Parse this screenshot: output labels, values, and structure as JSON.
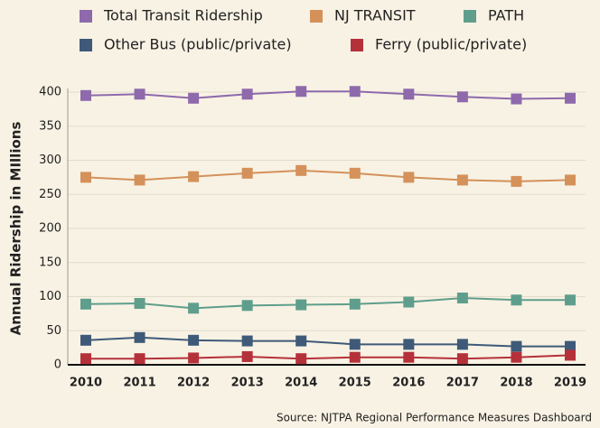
{
  "chart_data": {
    "type": "line",
    "y_label": "Annual Ridership in MIllions",
    "source": "Source: NJTPA Regional Performance Measures Dashboard",
    "categories": [
      "2010",
      "2011",
      "2012",
      "2013",
      "2014",
      "2015",
      "2016",
      "2017",
      "2018",
      "2019"
    ],
    "series": [
      {
        "name": "Total Transit Ridership",
        "color": "#8e6aac",
        "values": [
          395,
          397,
          391,
          397,
          401,
          401,
          397,
          393,
          390,
          391
        ]
      },
      {
        "name": "NJ TRANSIT",
        "color": "#d4915a",
        "values": [
          275,
          271,
          276,
          281,
          285,
          281,
          275,
          271,
          269,
          271
        ]
      },
      {
        "name": "PATH",
        "color": "#5f9e8c",
        "values": [
          89,
          90,
          83,
          87,
          88,
          89,
          92,
          98,
          95,
          95
        ]
      },
      {
        "name": "Other Bus (public/private)",
        "color": "#3e5a78",
        "values": [
          36,
          40,
          36,
          35,
          35,
          30,
          30,
          30,
          27,
          27
        ]
      },
      {
        "name": "Ferry (public/private)",
        "color": "#b5313a",
        "values": [
          9,
          9,
          10,
          12,
          9,
          11,
          11,
          9,
          11,
          14
        ]
      }
    ],
    "ylim": [
      0,
      400
    ],
    "yticks": [
      0,
      50,
      100,
      150,
      200,
      250,
      300,
      350,
      400
    ],
    "grid": true
  }
}
